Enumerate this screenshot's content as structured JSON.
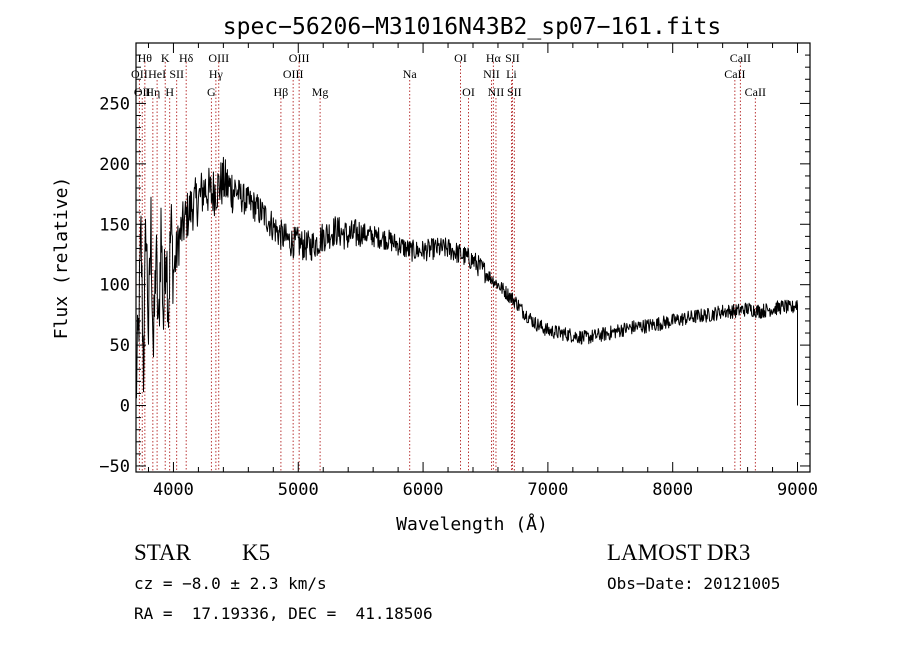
{
  "chart_data": {
    "type": "line",
    "title": "spec−56206−M31016N43B2_sp07−161.fits",
    "xlabel": "Wavelength (Å)",
    "ylabel": "Flux (relative)",
    "xlim": [
      3700,
      9100
    ],
    "ylim": [
      -55,
      300
    ],
    "xticks": [
      4000,
      5000,
      6000,
      7000,
      8000,
      9000
    ],
    "yticks": [
      -50,
      0,
      50,
      100,
      150,
      200,
      250
    ],
    "ytick_labels": [
      "−50",
      "0",
      "50",
      "100",
      "150",
      "200",
      "250"
    ],
    "line_color": "#000000",
    "marker_color": "#b22222",
    "series": [
      {
        "name": "flux",
        "x": [
          3700,
          3720,
          3740,
          3760,
          3780,
          3800,
          3820,
          3840,
          3860,
          3880,
          3900,
          3920,
          3940,
          3960,
          3980,
          4000,
          4050,
          4100,
          4150,
          4200,
          4250,
          4300,
          4350,
          4400,
          4450,
          4500,
          4550,
          4600,
          4650,
          4700,
          4750,
          4800,
          4850,
          4900,
          4950,
          5000,
          5050,
          5100,
          5150,
          5200,
          5300,
          5400,
          5500,
          5600,
          5700,
          5800,
          5900,
          6000,
          6100,
          6200,
          6300,
          6400,
          6450,
          6500,
          6550,
          6600,
          6650,
          6700,
          6750,
          6800,
          6900,
          7000,
          7100,
          7200,
          7300,
          7400,
          7500,
          7600,
          7700,
          7800,
          7900,
          8000,
          8100,
          8200,
          8300,
          8400,
          8500,
          8600,
          8700,
          8800,
          8900,
          8950,
          9000
        ],
        "y": [
          10,
          60,
          140,
          30,
          155,
          60,
          150,
          40,
          130,
          55,
          150,
          70,
          140,
          80,
          150,
          110,
          140,
          155,
          165,
          170,
          180,
          175,
          180,
          185,
          180,
          178,
          172,
          168,
          165,
          160,
          155,
          148,
          142,
          138,
          135,
          135,
          132,
          132,
          135,
          140,
          145,
          140,
          143,
          140,
          138,
          133,
          128,
          128,
          130,
          130,
          125,
          120,
          115,
          110,
          105,
          100,
          95,
          90,
          85,
          78,
          68,
          62,
          60,
          58,
          56,
          58,
          60,
          63,
          65,
          66,
          68,
          70,
          72,
          74,
          75,
          78,
          78,
          80,
          78,
          80,
          82,
          80,
          85
        ]
      }
    ],
    "lines": [
      {
        "wavelength": 3727,
        "label": "OII",
        "row": 2
      },
      {
        "wavelength": 3750,
        "label": "OII",
        "row": 3
      },
      {
        "wavelength": 3771,
        "label": "Hθ",
        "row": 1
      },
      {
        "wavelength": 3835,
        "label": "Hη",
        "row": 3
      },
      {
        "wavelength": 3869,
        "label": "HeI",
        "row": 2
      },
      {
        "wavelength": 3934,
        "label": "K",
        "row": 1
      },
      {
        "wavelength": 3970,
        "label": "H",
        "row": 3
      },
      {
        "wavelength": 4026,
        "label": "SII",
        "row": 2
      },
      {
        "wavelength": 4102,
        "label": "Hδ",
        "row": 1
      },
      {
        "wavelength": 4304,
        "label": "G",
        "row": 3
      },
      {
        "wavelength": 4340,
        "label": "Hγ",
        "row": 2
      },
      {
        "wavelength": 4363,
        "label": "OIII",
        "row": 1
      },
      {
        "wavelength": 4861,
        "label": "Hβ",
        "row": 3
      },
      {
        "wavelength": 4959,
        "label": "OIII",
        "row": 2
      },
      {
        "wavelength": 5007,
        "label": "OIII",
        "row": 1
      },
      {
        "wavelength": 5175,
        "label": "Mg",
        "row": 3
      },
      {
        "wavelength": 5893,
        "label": "Na",
        "row": 2
      },
      {
        "wavelength": 6300,
        "label": "OI",
        "row": 1
      },
      {
        "wavelength": 6364,
        "label": "OI",
        "row": 3
      },
      {
        "wavelength": 6548,
        "label": "NII",
        "row": 2
      },
      {
        "wavelength": 6563,
        "label": "Hα",
        "row": 1
      },
      {
        "wavelength": 6584,
        "label": "NII",
        "row": 3
      },
      {
        "wavelength": 6708,
        "label": "Li",
        "row": 2
      },
      {
        "wavelength": 6716,
        "label": "SII",
        "row": 1
      },
      {
        "wavelength": 6731,
        "label": "SII",
        "row": 3
      },
      {
        "wavelength": 8498,
        "label": "CaII",
        "row": 2
      },
      {
        "wavelength": 8542,
        "label": "CaII",
        "row": 1
      },
      {
        "wavelength": 8662,
        "label": "CaII",
        "row": 3
      }
    ]
  },
  "info": {
    "class": "STAR",
    "subclass": "K5",
    "survey": "LAMOST DR3",
    "cz": "cz = −8.0 ± 2.3 km/s",
    "obs_date": "Obs−Date: 20121005",
    "radec": "RA =  17.19336, DEC =  41.18506"
  }
}
